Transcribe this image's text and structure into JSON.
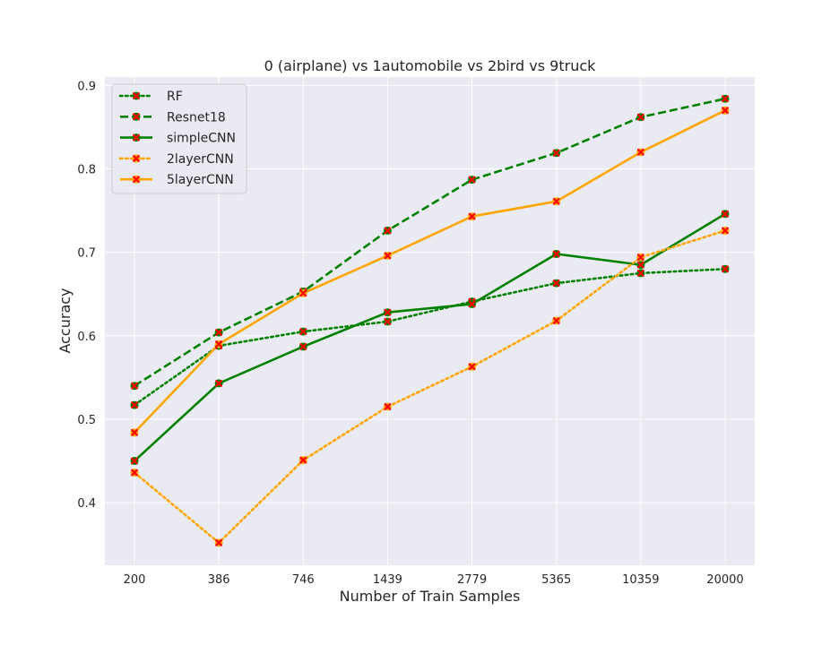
{
  "chart_data": {
    "type": "line",
    "title": "0 (airplane)  vs 1automobile vs 2bird vs 9truck",
    "xlabel": "Number of Train Samples",
    "ylabel": "Accuracy",
    "categories": [
      "200",
      "386",
      "746",
      "1439",
      "2779",
      "5365",
      "10359",
      "20000"
    ],
    "ylim": [
      0.325,
      0.91
    ],
    "yticks": [
      0.4,
      0.5,
      0.6,
      0.7,
      0.8,
      0.9
    ],
    "ytick_labels": [
      "0.4",
      "0.5",
      "0.6",
      "0.7",
      "0.8",
      "0.9"
    ],
    "grid": true,
    "legend_position": "top-left",
    "series": [
      {
        "name": "RF",
        "color": "#008000",
        "dash": "dotted",
        "values": [
          0.517,
          0.588,
          0.605,
          0.617,
          0.641,
          0.663,
          0.675,
          0.68
        ]
      },
      {
        "name": "Resnet18",
        "color": "#008000",
        "dash": "dashed",
        "values": [
          0.54,
          0.604,
          0.653,
          0.726,
          0.787,
          0.819,
          0.862,
          0.884
        ]
      },
      {
        "name": "simpleCNN",
        "color": "#008000",
        "dash": "solid",
        "values": [
          0.45,
          0.543,
          0.587,
          0.628,
          0.638,
          0.698,
          0.685,
          0.746
        ]
      },
      {
        "name": "2layerCNN",
        "color": "#ffa500",
        "dash": "dotted",
        "values": [
          0.436,
          0.352,
          0.451,
          0.515,
          0.563,
          0.618,
          0.694,
          0.726
        ]
      },
      {
        "name": "5layerCNN",
        "color": "#ffa500",
        "dash": "solid",
        "values": [
          0.484,
          0.59,
          0.651,
          0.696,
          0.743,
          0.761,
          0.82,
          0.87
        ]
      }
    ],
    "marker_color": "#ff0000",
    "background_color": "#eaeaf2"
  }
}
